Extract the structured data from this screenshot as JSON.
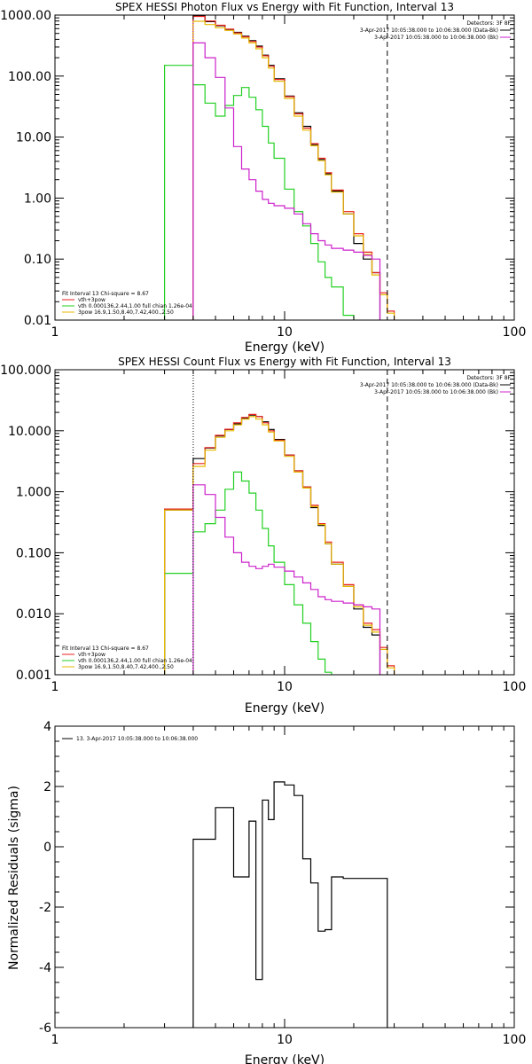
{
  "colors": {
    "data": "#000000",
    "total": "#e8201c",
    "thermal": "#22d022",
    "powerlaw": "#e6b800",
    "background": "#cc22cc"
  },
  "chart_data": [
    {
      "type": "line",
      "title": "SPEX HESSI Photon Flux vs Energy with Fit Function, Interval 13",
      "xlabel": "Energy (keV)",
      "ylabel": "",
      "xscale": "log",
      "yscale": "log",
      "xlim": [
        1,
        100
      ],
      "ylim": [
        0.01,
        1000
      ],
      "xticks": [
        {
          "v": 1,
          "t": "1"
        },
        {
          "v": 10,
          "t": "10"
        },
        {
          "v": 100,
          "t": "100"
        }
      ],
      "yticks": [
        {
          "v": 0.01,
          "t": "0.01"
        },
        {
          "v": 0.1,
          "t": "0.10"
        },
        {
          "v": 1,
          "t": "1.00"
        },
        {
          "v": 10,
          "t": "10.00"
        },
        {
          "v": 100,
          "t": "100.00"
        },
        {
          "v": 1000,
          "t": "1000.00"
        }
      ],
      "vlines": [
        {
          "x": 4.0,
          "style": "dotted",
          "color": "#cc22cc"
        },
        {
          "x": 28.0,
          "style": "dashed",
          "color": "#000000"
        }
      ],
      "legend_top": [
        "Detectors: 3F 8F",
        "3-Apr-2017 10:05:38.000 to 10:06:38.000 (Data-Bk)",
        "3-Apr-2017 10:05:38.000 to 10:06:38.000 (Bk)"
      ],
      "legend_bottom": [
        "Fit Interval 13   Chi-square = 8.67",
        "vth+3pow",
        "vth 0.000136,2.44,1.00   full chian 1.26e-04",
        "3pow 16.9,1.50,8.40,7.42,400.,2.50"
      ],
      "edges": [
        3,
        4,
        4.5,
        5,
        5.5,
        6,
        6.5,
        7,
        7.5,
        8,
        8.5,
        9,
        10,
        11,
        12,
        13,
        14,
        15,
        16,
        18,
        20,
        22,
        24,
        26,
        28,
        30,
        32,
        34
      ],
      "series": [
        {
          "name": "3-Apr-2017 10:05:38.000 to 10:06:38.000 (Data-Bk)",
          "role": "data",
          "values": [
            null,
            980,
            780,
            670,
            580,
            520,
            450,
            380,
            310,
            220,
            150,
            90,
            47,
            25,
            15,
            7.5,
            4.3,
            2.5,
            1.3,
            0.55,
            0.18,
            0.1,
            0.06,
            null,
            null,
            null,
            null
          ]
        },
        {
          "name": "vth+3pow",
          "role": "total",
          "values": [
            null,
            950,
            800,
            680,
            590,
            510,
            440,
            370,
            300,
            215,
            145,
            88,
            46,
            24,
            14,
            7.8,
            4.5,
            2.6,
            1.35,
            0.6,
            0.26,
            0.13,
            0.06,
            0.028,
            0.014,
            null,
            null
          ]
        },
        {
          "name": "vth 0.000136,2.44,1.00",
          "role": "thermal",
          "values": [
            150,
            72,
            36,
            22,
            33,
            48,
            65,
            45,
            28,
            15,
            8,
            4.5,
            1.4,
            0.6,
            0.35,
            0.18,
            0.09,
            0.05,
            0.035,
            0.012,
            null,
            null,
            null,
            null,
            null,
            null,
            null
          ]
        },
        {
          "name": "3pow 16.9,1.50,8.40,7.42,400.,2.50",
          "role": "powerlaw",
          "values": [
            null,
            790,
            700,
            620,
            560,
            490,
            420,
            350,
            280,
            200,
            135,
            82,
            43,
            22,
            13,
            7.2,
            4.1,
            2.4,
            1.25,
            0.55,
            0.24,
            0.12,
            0.055,
            0.026,
            0.013,
            null,
            null
          ]
        },
        {
          "name": "3-Apr-2017 10:05:38.000 to 10:06:38.000 (Bk)",
          "role": "background",
          "values": [
            null,
            350,
            200,
            95,
            30,
            7,
            3,
            2,
            1.3,
            0.95,
            0.82,
            0.75,
            0.68,
            0.55,
            0.38,
            0.26,
            0.2,
            0.17,
            0.15,
            0.14,
            0.13,
            0.115,
            0.1,
            null,
            null,
            null,
            null
          ]
        }
      ]
    },
    {
      "type": "line",
      "title": "SPEX HESSI Count Flux vs Energy with Fit Function, Interval 13",
      "xlabel": "Energy (keV)",
      "ylabel": "",
      "xscale": "log",
      "yscale": "log",
      "xlim": [
        1,
        100
      ],
      "ylim": [
        0.001,
        100
      ],
      "xticks": [
        {
          "v": 1,
          "t": "1"
        },
        {
          "v": 10,
          "t": "10"
        },
        {
          "v": 100,
          "t": "100"
        }
      ],
      "yticks": [
        {
          "v": 0.001,
          "t": "0.001"
        },
        {
          "v": 0.01,
          "t": "0.010"
        },
        {
          "v": 0.1,
          "t": "0.100"
        },
        {
          "v": 1,
          "t": "1.000"
        },
        {
          "v": 10,
          "t": "10.000"
        },
        {
          "v": 100,
          "t": "100.000"
        }
      ],
      "vlines": [
        {
          "x": 4.0,
          "style": "dotted",
          "color": "#000000"
        },
        {
          "x": 28.0,
          "style": "dashed",
          "color": "#000000"
        }
      ],
      "legend_top": [
        "Detectors: 3F 8F",
        "3-Apr-2017 10:05:38.000 to 10:06:38.000 (Data-Bk)",
        "3-Apr-2017 10:05:38.000 to 10:06:38.000 (Bk)"
      ],
      "legend_bottom": [
        "Fit Interval 13   Chi-square = 8.67",
        "vth+3pow",
        "vth 0.000136,2.44,1.00   full chian 1.26e-04",
        "3pow 16.9,1.50,8.40,7.42,400.,2.50"
      ],
      "edges": [
        3,
        4,
        4.5,
        5,
        5.5,
        6,
        6.5,
        7,
        7.5,
        8,
        8.5,
        9,
        10,
        11,
        12,
        13,
        14,
        15,
        16,
        18,
        20,
        22,
        24,
        26,
        28,
        30,
        32,
        34
      ],
      "series": [
        {
          "name": "3-Apr-2017 10:05:38.000 to 10:06:38.000 (Data-Bk)",
          "role": "data",
          "values": [
            0.5,
            3.5,
            5.2,
            8.2,
            10.5,
            13,
            16,
            18,
            17,
            14,
            10.5,
            7.2,
            4,
            2.2,
            1.2,
            0.55,
            0.28,
            0.14,
            0.065,
            0.028,
            0.012,
            0.006,
            0.0045,
            null,
            null,
            null,
            null
          ]
        },
        {
          "name": "vth+3pow",
          "role": "total",
          "values": [
            0.52,
            2.9,
            5.3,
            8.4,
            10.6,
            13.5,
            16.5,
            18.5,
            17,
            13.5,
            10,
            7,
            4,
            2.2,
            1.2,
            0.6,
            0.3,
            0.15,
            0.07,
            0.03,
            0.014,
            0.007,
            0.0055,
            0.0028,
            0.0014,
            null,
            null
          ]
        },
        {
          "name": "vth 0.000136,2.44,1.00",
          "role": "thermal",
          "values": [
            0.046,
            0.22,
            0.3,
            0.5,
            1.1,
            2.1,
            1.5,
            0.95,
            0.5,
            0.25,
            0.13,
            0.07,
            0.03,
            0.014,
            0.007,
            0.0035,
            0.0018,
            0.0011,
            null,
            null,
            null,
            null,
            null,
            null,
            null,
            null,
            null
          ]
        },
        {
          "name": "3pow 16.9,1.50,8.40,7.42,400.,2.50",
          "role": "powerlaw",
          "values": [
            0.5,
            2.6,
            4.8,
            7.8,
            10,
            12.5,
            15.5,
            17,
            15.5,
            12.5,
            9.5,
            6.8,
            3.8,
            2.1,
            1.15,
            0.57,
            0.29,
            0.14,
            0.065,
            0.028,
            0.013,
            0.0065,
            0.005,
            0.0026,
            0.0013,
            null,
            null
          ]
        },
        {
          "name": "3-Apr-2017 10:05:38.000 to 10:06:38.000 (Bk)",
          "role": "background",
          "values": [
            null,
            1.3,
            0.9,
            0.38,
            0.18,
            0.1,
            0.07,
            0.06,
            0.055,
            0.06,
            0.065,
            0.058,
            0.05,
            0.04,
            0.032,
            0.025,
            0.019,
            0.017,
            0.016,
            0.015,
            0.014,
            0.013,
            0.012,
            null,
            null,
            null,
            null
          ]
        }
      ]
    },
    {
      "type": "line",
      "title": "",
      "xlabel": "Energy (keV)",
      "ylabel": "Normalized Residuals (sigma)",
      "xscale": "log",
      "yscale": "linear",
      "xlim": [
        1,
        100
      ],
      "ylim": [
        -6,
        4
      ],
      "xticks": [
        {
          "v": 1,
          "t": "1"
        },
        {
          "v": 10,
          "t": "10"
        },
        {
          "v": 100,
          "t": "100"
        }
      ],
      "yticks": [
        {
          "v": -6,
          "t": "-6"
        },
        {
          "v": -4,
          "t": "-4"
        },
        {
          "v": -2,
          "t": "-2"
        },
        {
          "v": 0,
          "t": "0"
        },
        {
          "v": 2,
          "t": "2"
        },
        {
          "v": 4,
          "t": "4"
        }
      ],
      "vlines": [],
      "legend_top": [
        "13.  3-Apr-2017 10:05:38.000 to 10:06:38.000"
      ],
      "legend_bottom": [],
      "edges": [
        4,
        5,
        6,
        7,
        7.5,
        8,
        8.5,
        9,
        10,
        11,
        12,
        13,
        14,
        15,
        16,
        18,
        20,
        22,
        24,
        26,
        28
      ],
      "series": [
        {
          "name": "13.  3-Apr-2017 10:05:38.000 to 10:06:38.000",
          "role": "data",
          "values": [
            0.25,
            1.3,
            -1.0,
            0.85,
            -4.4,
            1.55,
            0.9,
            2.15,
            2.05,
            1.7,
            -0.4,
            -1.2,
            -2.8,
            -2.75,
            -1.0,
            -1.05,
            -1.05,
            -1.05,
            -1.05,
            -1.05
          ]
        }
      ]
    }
  ]
}
